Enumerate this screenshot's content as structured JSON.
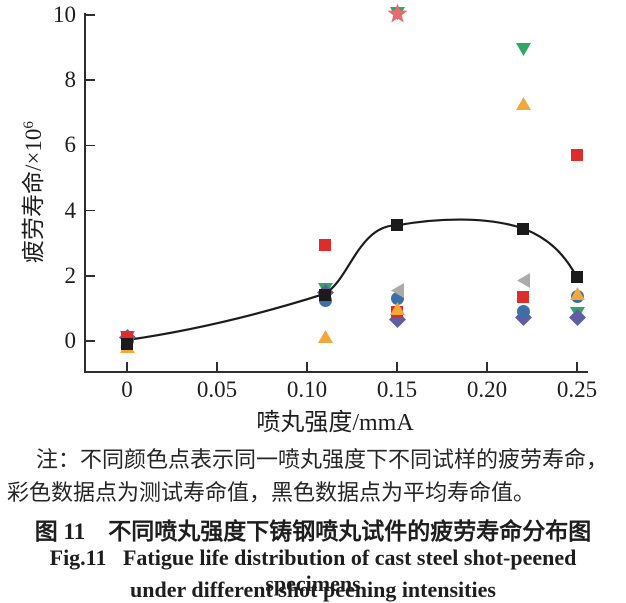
{
  "figure": {
    "note_line1": "注：不同颜色点表示同一喷丸强度下不同试样的疲劳寿命，",
    "note_line2": "彩色数据点为测试寿命值，黑色数据点为平均寿命值。",
    "caption_zh": "图 11　不同喷丸强度下铸钢喷丸试件的疲劳寿命分布图",
    "caption_en_line1": "Fig.11   Fatigue life distribution of cast steel shot-peened specimens",
    "caption_en_line2": "under different shot peening intensities"
  },
  "chart_data": {
    "type": "scatter",
    "title": "",
    "xlabel": "喷丸强度/mmA",
    "ylabel_base": "疲劳寿命/×10",
    "ylabel_exp": "6",
    "xlim": [
      -0.0228,
      0.2561
    ],
    "ylim": [
      -0.92,
      10.06
    ],
    "grid": false,
    "legend": "none",
    "x_ticks": [
      0,
      0.05,
      0.1,
      0.15,
      0.2,
      0.25
    ],
    "x_tick_labels": [
      "0",
      "0.05",
      "0.10",
      "0.15",
      "0.20",
      "0.25"
    ],
    "y_ticks": [
      0,
      2,
      4,
      6,
      8,
      10
    ],
    "y_tick_labels": [
      "0",
      "2",
      "4",
      "6",
      "8",
      "10"
    ],
    "curve_color": "#1b1b1b",
    "series": [
      {
        "name": "specimen-green",
        "marker": "triangle-down",
        "color": "#2fa866",
        "points": [
          [
            0,
            0.12
          ],
          [
            0.11,
            1.58
          ],
          [
            0.15,
            10.05
          ],
          [
            0.22,
            8.95
          ],
          [
            0.25,
            0.85
          ]
        ]
      },
      {
        "name": "specimen-purple",
        "marker": "diamond",
        "color": "#5f5ea0",
        "points": [
          [
            0,
            0.1
          ],
          [
            0.11,
            1.5
          ],
          [
            0.15,
            0.65
          ],
          [
            0.22,
            0.73
          ],
          [
            0.25,
            0.73
          ]
        ]
      },
      {
        "name": "specimen-blue",
        "marker": "circle",
        "color": "#3c6fa6",
        "points": [
          [
            0,
            0.02
          ],
          [
            0.11,
            1.25
          ],
          [
            0.15,
            1.3
          ],
          [
            0.22,
            0.9
          ],
          [
            0.25,
            1.38
          ]
        ]
      },
      {
        "name": "specimen-red",
        "marker": "square",
        "color": "#dd2c2c",
        "points": [
          [
            0,
            0.12
          ],
          [
            0.11,
            2.95
          ],
          [
            0.15,
            0.9
          ],
          [
            0.22,
            1.35
          ],
          [
            0.25,
            5.72
          ]
        ]
      },
      {
        "name": "specimen-orange",
        "marker": "triangle-up",
        "color": "#f2a93b",
        "points": [
          [
            0,
            -0.18
          ],
          [
            0.11,
            0.15
          ],
          [
            0.15,
            1.0
          ],
          [
            0.22,
            7.28
          ],
          [
            0.25,
            1.45
          ]
        ]
      },
      {
        "name": "specimen-gray",
        "marker": "triangle-left",
        "color": "#ababab",
        "points": [
          [
            0.15,
            1.55
          ],
          [
            0.22,
            1.85
          ]
        ]
      },
      {
        "name": "specimen-pink",
        "marker": "star",
        "color": "#e96970",
        "points": [
          [
            0.15,
            10.05
          ]
        ]
      },
      {
        "name": "average",
        "marker": "square",
        "color": "#1b1b1b",
        "points": [
          [
            0,
            -0.1
          ],
          [
            0.11,
            1.42
          ],
          [
            0.15,
            3.55
          ],
          [
            0.22,
            3.45
          ],
          [
            0.25,
            1.95
          ]
        ]
      }
    ],
    "average_curve": {
      "anchors": [
        [
          0,
          0.03
        ],
        [
          0.11,
          1.45
        ],
        [
          0.15,
          3.55
        ],
        [
          0.22,
          3.45
        ],
        [
          0.25,
          1.95
        ]
      ],
      "controls": [
        [
          [
            0.039,
            0.34
          ],
          [
            0.078,
            0.89
          ]
        ],
        [
          [
            0.1233,
            1.87
          ],
          [
            0.1289,
            3.56
          ]
        ],
        [
          [
            0.172,
            3.77
          ],
          [
            0.2,
            3.83
          ]
        ],
        [
          [
            0.234,
            3.16
          ],
          [
            0.243,
            2.67
          ]
        ]
      ]
    }
  }
}
